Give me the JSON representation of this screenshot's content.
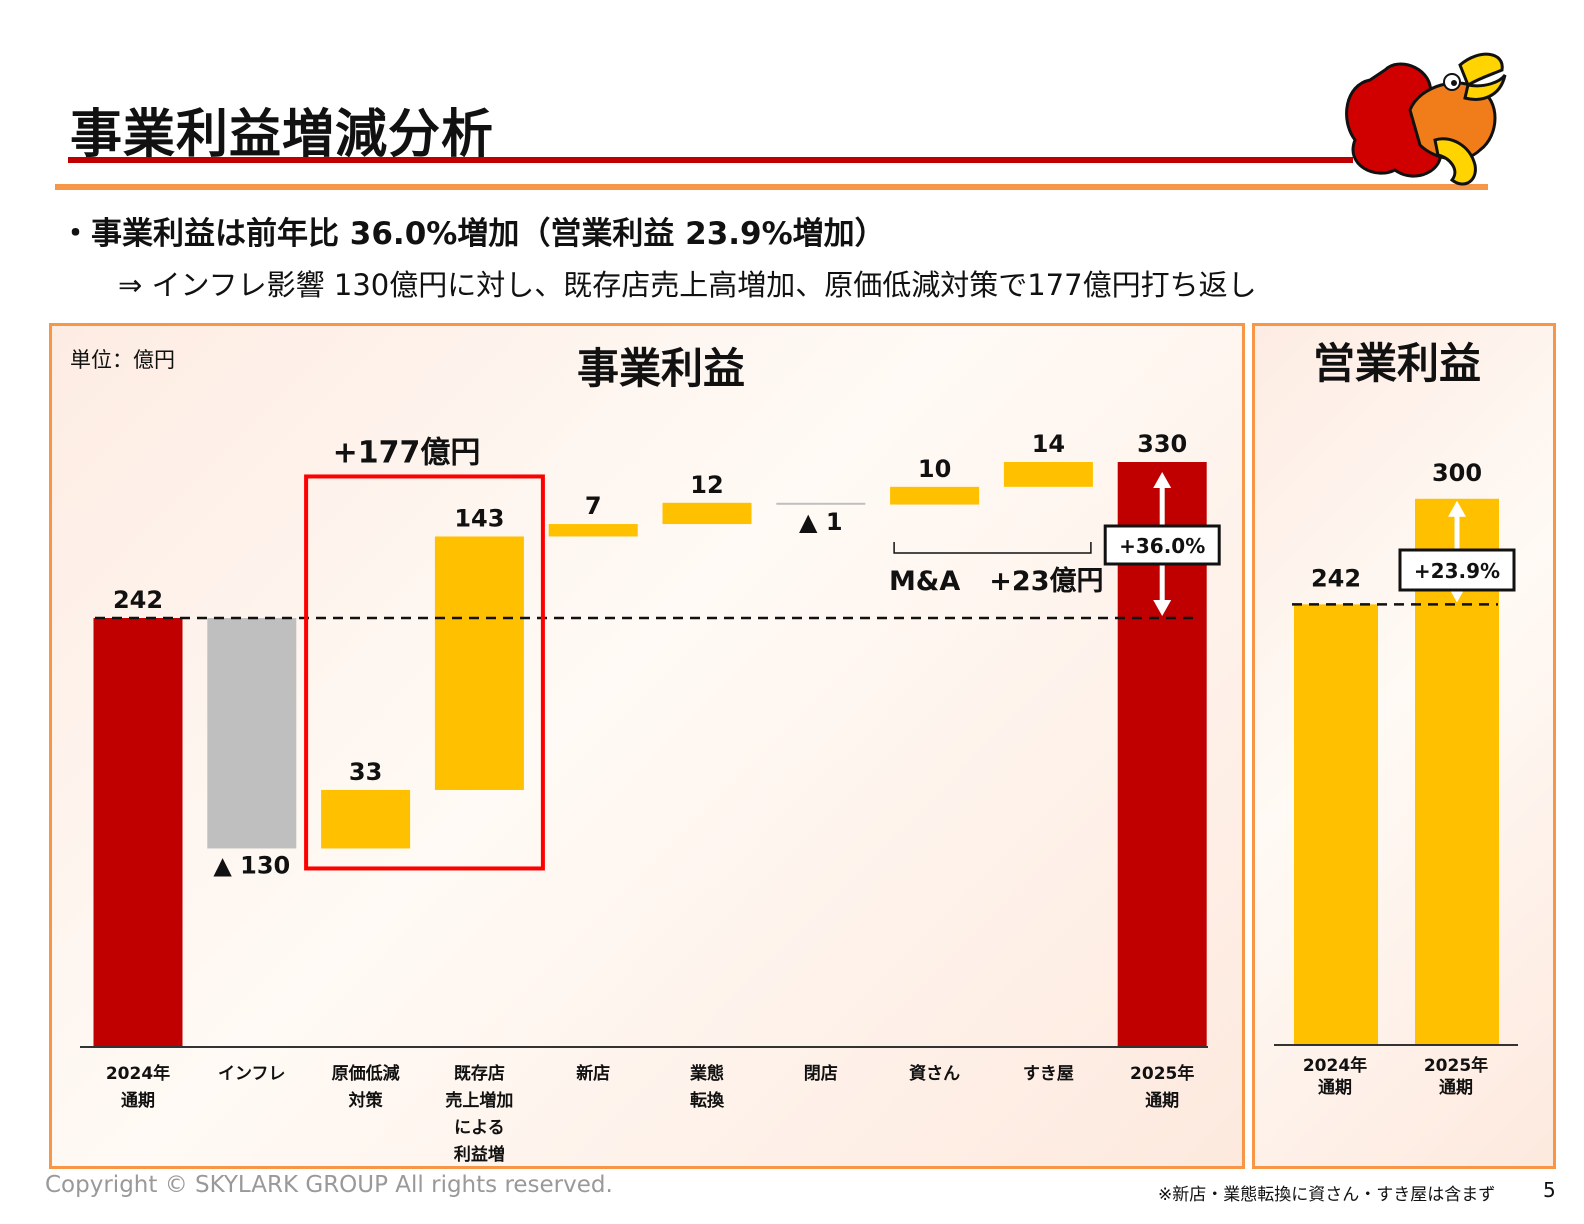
{
  "page": {
    "title": "事業利益増減分析",
    "bullet1": "・事業利益は前年比 36.0%増加（営業利益 23.9%増加）",
    "bullet2": "⇒ インフレ影響 130億円に対し、既存店売上高増加、原価低減対策で177億円打ち返し",
    "unit": "単位：億円",
    "footer_copyright": "Copyright © SKYLARK GROUP All rights reserved.",
    "footer_note": "※新店・業態転換に資さん・すき屋は含まず",
    "page_number": "5",
    "mascot_icon": "rooster-mascot-icon"
  },
  "colors": {
    "red": "#c00000",
    "yellow": "#ffc000",
    "gray": "#bfbfbf",
    "orange": "#f79646",
    "highlight": "#ff0000"
  },
  "chart_data": [
    {
      "type": "bar",
      "subtype": "waterfall",
      "title": "事業利益",
      "categories": [
        [
          "2024年",
          "通期"
        ],
        [
          "インフレ"
        ],
        [
          "原価低減",
          "対策"
        ],
        [
          "既存店",
          "売上増加",
          "による",
          "利益増"
        ],
        [
          "新店"
        ],
        [
          "業態",
          "転換"
        ],
        [
          "閉店"
        ],
        [
          "資さん"
        ],
        [
          "すき屋"
        ],
        [
          "2025年",
          "通期"
        ]
      ],
      "values": [
        242,
        -130,
        33,
        143,
        7,
        12,
        -1,
        10,
        14,
        330
      ],
      "value_labels": [
        "242",
        "▲ 130",
        "33",
        "143",
        "7",
        "12",
        "▲ 1",
        "10",
        "14",
        "330"
      ],
      "bar_kind": [
        "total",
        "decrease",
        "increase",
        "increase",
        "increase",
        "increase",
        "decrease",
        "increase",
        "increase",
        "total"
      ],
      "ylim": [
        0,
        360
      ],
      "baseline_value": 242,
      "annotations": {
        "highlight_box": "+177億円",
        "ma_bracket_left": "M&A",
        "ma_bracket_right": "+23億円",
        "growth": "+36.0%"
      }
    },
    {
      "type": "bar",
      "title": "営業利益",
      "categories": [
        [
          "2024年",
          "通期"
        ],
        [
          "2025年",
          "通期"
        ]
      ],
      "values": [
        242,
        300
      ],
      "value_labels": [
        "242",
        "300"
      ],
      "ylim": [
        0,
        330
      ],
      "baseline_value": 242,
      "annotations": {
        "growth": "+23.9%"
      }
    }
  ]
}
